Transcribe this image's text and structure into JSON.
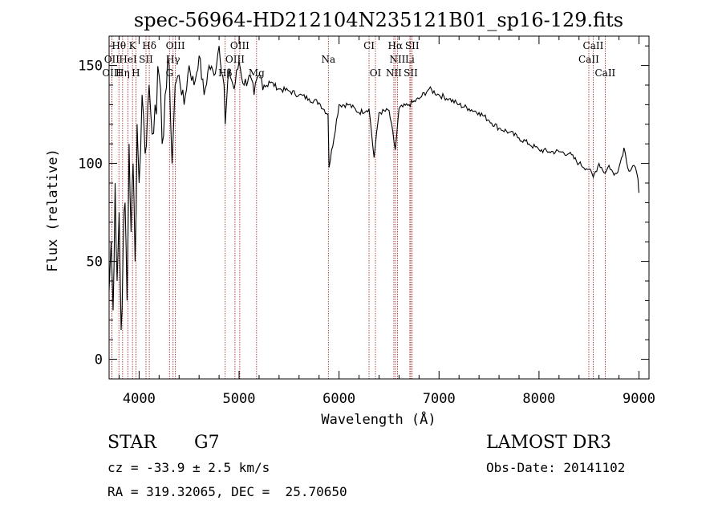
{
  "chart_data": {
    "type": "line",
    "title": "spec-56964-HD212104N235121B01_sp16-129.fits",
    "xlabel": "Wavelength (Å)",
    "ylabel": "Flux (relative)",
    "xlim": [
      3700,
      9100
    ],
    "ylim": [
      -10,
      165
    ],
    "x_ticks": [
      4000,
      5000,
      6000,
      7000,
      8000,
      9000
    ],
    "y_ticks": [
      0,
      50,
      100,
      150
    ],
    "grid": false,
    "series": [
      {
        "name": "flux",
        "x": [
          3700,
          3720,
          3740,
          3760,
          3780,
          3800,
          3820,
          3840,
          3860,
          3880,
          3900,
          3920,
          3940,
          3960,
          3980,
          4000,
          4030,
          4060,
          4100,
          4130,
          4160,
          4200,
          4230,
          4260,
          4300,
          4330,
          4360,
          4400,
          4450,
          4500,
          4550,
          4600,
          4650,
          4700,
          4750,
          4800,
          4850,
          4861,
          4900,
          4950,
          5000,
          5050,
          5100,
          5150,
          5200,
          5250,
          5300,
          5400,
          5500,
          5600,
          5700,
          5800,
          5890,
          5900,
          6000,
          6100,
          6200,
          6300,
          6350,
          6400,
          6500,
          6563,
          6600,
          6700,
          6800,
          6900,
          7000,
          7100,
          7200,
          7300,
          7400,
          7500,
          7600,
          7700,
          7800,
          7900,
          8000,
          8100,
          8200,
          8300,
          8400,
          8498,
          8542,
          8600,
          8662,
          8700,
          8750,
          8800,
          8850,
          8900,
          8950,
          8990,
          9000
        ],
        "values": [
          35,
          60,
          25,
          90,
          40,
          75,
          15,
          55,
          80,
          30,
          110,
          65,
          100,
          50,
          120,
          90,
          135,
          105,
          140,
          115,
          130,
          145,
          110,
          135,
          150,
          100,
          140,
          145,
          130,
          150,
          140,
          155,
          135,
          150,
          145,
          160,
          140,
          120,
          148,
          138,
          152,
          140,
          145,
          135,
          145,
          140,
          142,
          138,
          137,
          135,
          133,
          131,
          125,
          98,
          130,
          130,
          126,
          128,
          103,
          126,
          127,
          107,
          128,
          130,
          133,
          138,
          135,
          133,
          130,
          128,
          126,
          122,
          118,
          116,
          113,
          110,
          107,
          106,
          106,
          105,
          100,
          97,
          93,
          100,
          95,
          99,
          94,
          98,
          108,
          96,
          99,
          92,
          85
        ]
      }
    ],
    "spectral_lines": [
      {
        "name": "Hθ",
        "x": 3798,
        "row": 0
      },
      {
        "name": "K",
        "x": 3934,
        "row": 0
      },
      {
        "name": "Hδ",
        "x": 4102,
        "row": 0
      },
      {
        "name": "OIII",
        "x": 4363,
        "row": 0
      },
      {
        "name": "OIII",
        "x": 5007,
        "row": 0
      },
      {
        "name": "CI",
        "x": 6300,
        "row": 0
      },
      {
        "name": "Hα",
        "x": 6563,
        "row": 0
      },
      {
        "name": "SII",
        "x": 6731,
        "row": 0
      },
      {
        "name": "CaII",
        "x": 8542,
        "row": 0
      },
      {
        "name": "OII",
        "x": 3727,
        "row": 1
      },
      {
        "name": "HeI",
        "x": 3889,
        "row": 1
      },
      {
        "name": "SII",
        "x": 4069,
        "row": 1
      },
      {
        "name": "Hγ",
        "x": 4340,
        "row": 1
      },
      {
        "name": "OIII",
        "x": 4959,
        "row": 1
      },
      {
        "name": "Na",
        "x": 5893,
        "row": 1
      },
      {
        "name": "NII",
        "x": 6584,
        "row": 1
      },
      {
        "name": "Li",
        "x": 6708,
        "row": 1
      },
      {
        "name": "CaII",
        "x": 8498,
        "row": 1
      },
      {
        "name": "OIII",
        "x": 3727,
        "row": 2
      },
      {
        "name": "Hη",
        "x": 3835,
        "row": 2
      },
      {
        "name": "H",
        "x": 3968,
        "row": 2
      },
      {
        "name": "G",
        "x": 4304,
        "row": 2
      },
      {
        "name": "Hβ",
        "x": 4861,
        "row": 2
      },
      {
        "name": "Mg",
        "x": 5175,
        "row": 2
      },
      {
        "name": "OI",
        "x": 6364,
        "row": 2
      },
      {
        "name": "NII",
        "x": 6548,
        "row": 2
      },
      {
        "name": "SII",
        "x": 6717,
        "row": 2
      },
      {
        "name": "CaII",
        "x": 8662,
        "row": 2
      }
    ]
  },
  "info": {
    "object_class": "STAR",
    "subclass": "G7",
    "survey": "LAMOST DR3",
    "cz": "cz = -33.9 ± 2.5 km/s",
    "obs_date": "Obs-Date: 20141102",
    "coords": "RA = 319.32065, DEC =  25.70650"
  },
  "colors": {
    "line_marker": "#a01818",
    "spectrum": "#000000",
    "axis": "#000000"
  }
}
